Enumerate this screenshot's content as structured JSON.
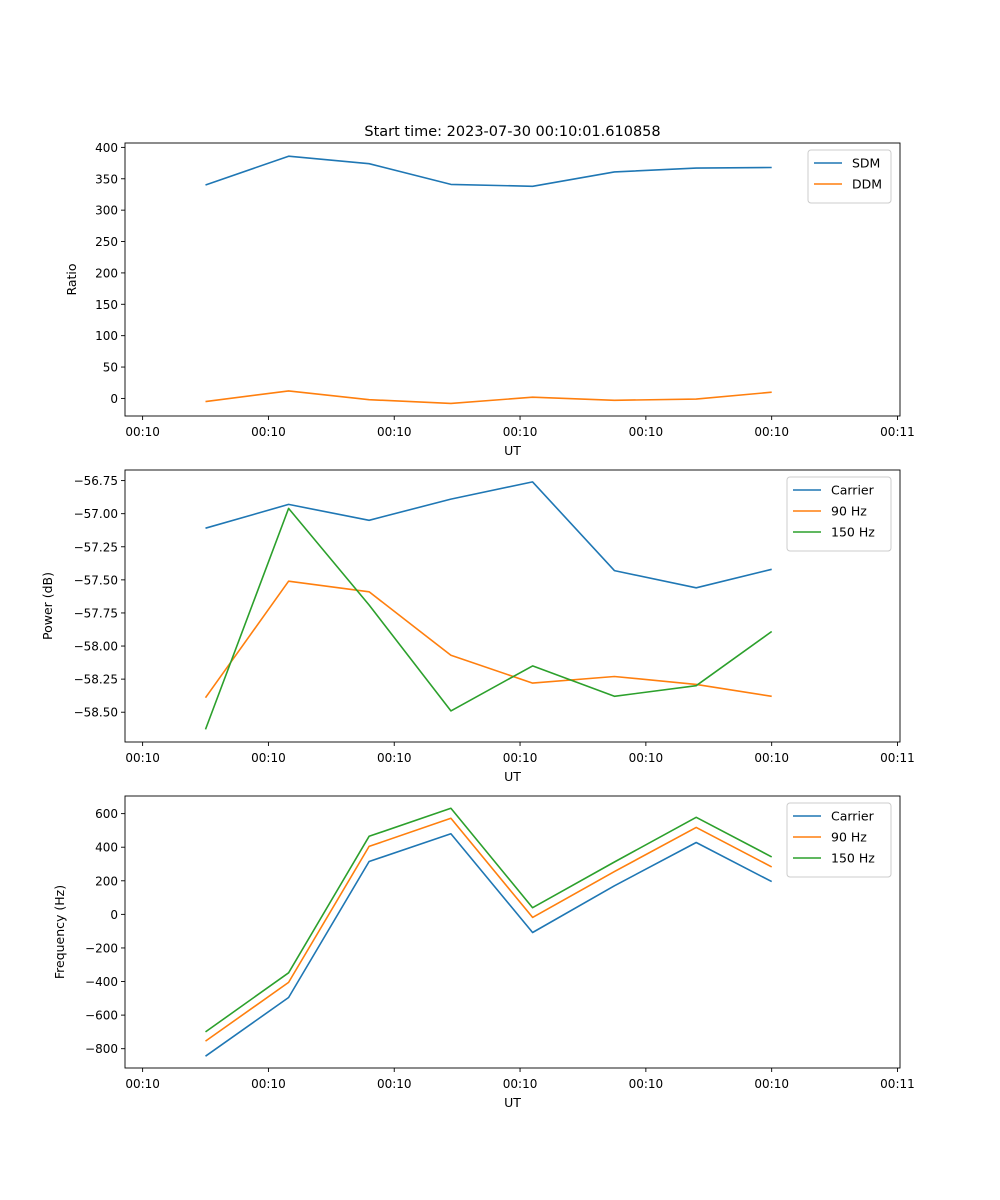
{
  "title": "Start time: 2023-07-30 00:10:01.610858",
  "colors": {
    "blue": "#1f77b4",
    "orange": "#ff7f0e",
    "green": "#2ca02c"
  },
  "chart_data": [
    {
      "type": "line",
      "xlabel": "UT",
      "ylabel": "Ratio",
      "xlim": [
        -0.64,
        5.52
      ],
      "ylim": [
        -28,
        407
      ],
      "yticks": [
        0,
        50,
        100,
        150,
        200,
        250,
        300,
        350,
        400
      ],
      "ytick_labels": [
        "0",
        "50",
        "100",
        "150",
        "200",
        "250",
        "300",
        "350",
        "400"
      ],
      "xticks": [
        -0.5,
        0.5,
        1.5,
        2.5,
        3.5,
        4.5,
        5.5
      ],
      "xtick_labels": [
        "00:10",
        "00:10",
        "00:10",
        "00:10",
        "00:10",
        "00:10",
        "00:11"
      ],
      "x": [
        0,
        0.66,
        1.3,
        1.95,
        2.6,
        3.25,
        3.9,
        4.5
      ],
      "legend_position": "top-right",
      "series": [
        {
          "name": "SDM",
          "color": "#1f77b4",
          "values": [
            340,
            386,
            374,
            341,
            338,
            361,
            367,
            368
          ]
        },
        {
          "name": "DDM",
          "color": "#ff7f0e",
          "values": [
            -5,
            12,
            -2,
            -8,
            2,
            -3,
            -1,
            10
          ]
        }
      ]
    },
    {
      "type": "line",
      "xlabel": "UT",
      "ylabel": "Power (dB)",
      "xlim": [
        -0.64,
        5.52
      ],
      "ylim": [
        -58.725,
        -56.67
      ],
      "yticks": [
        -58.5,
        -58.25,
        -58.0,
        -57.75,
        -57.5,
        -57.25,
        -57.0,
        -56.75
      ],
      "ytick_labels": [
        "−58.50",
        "−58.25",
        "−58.00",
        "−57.75",
        "−57.50",
        "−57.25",
        "−57.00",
        "−56.75"
      ],
      "xticks": [
        -0.5,
        0.5,
        1.5,
        2.5,
        3.5,
        4.5,
        5.5
      ],
      "xtick_labels": [
        "00:10",
        "00:10",
        "00:10",
        "00:10",
        "00:10",
        "00:10",
        "00:11"
      ],
      "x": [
        0,
        0.66,
        1.3,
        1.95,
        2.6,
        3.25,
        3.9,
        4.5
      ],
      "legend_position": "top-right",
      "series": [
        {
          "name": "Carrier",
          "color": "#1f77b4",
          "values": [
            -57.11,
            -56.93,
            -57.05,
            -56.89,
            -56.76,
            -57.43,
            -57.56,
            -57.42
          ]
        },
        {
          "name": "90 Hz",
          "color": "#ff7f0e",
          "values": [
            -58.39,
            -57.51,
            -57.59,
            -58.07,
            -58.28,
            -58.23,
            -58.29,
            -58.38
          ]
        },
        {
          "name": "150 Hz",
          "color": "#2ca02c",
          "values": [
            -58.63,
            -56.96,
            -57.69,
            -58.49,
            -58.15,
            -58.38,
            -58.3,
            -57.89
          ]
        }
      ]
    },
    {
      "type": "line",
      "xlabel": "UT",
      "ylabel": "Frequency (Hz)",
      "xlim": [
        -0.64,
        5.52
      ],
      "ylim": [
        -915,
        705
      ],
      "yticks": [
        -800,
        -600,
        -400,
        -200,
        0,
        200,
        400,
        600
      ],
      "ytick_labels": [
        "−800",
        "−600",
        "−400",
        "−200",
        "0",
        "200",
        "400",
        "600"
      ],
      "xticks": [
        -0.5,
        0.5,
        1.5,
        2.5,
        3.5,
        4.5,
        5.5
      ],
      "xtick_labels": [
        "00:10",
        "00:10",
        "00:10",
        "00:10",
        "00:10",
        "00:10",
        "00:11"
      ],
      "x": [
        0,
        0.66,
        1.3,
        1.95,
        2.6,
        3.25,
        3.9,
        4.5
      ],
      "legend_position": "top-right",
      "series": [
        {
          "name": "Carrier",
          "color": "#1f77b4",
          "values": [
            -845,
            -495,
            315,
            480,
            -108,
            170,
            428,
            195
          ]
        },
        {
          "name": "90 Hz",
          "color": "#ff7f0e",
          "values": [
            -755,
            -405,
            405,
            572,
            -18,
            255,
            518,
            283
          ]
        },
        {
          "name": "150 Hz",
          "color": "#2ca02c",
          "values": [
            -700,
            -348,
            465,
            632,
            40,
            312,
            578,
            342
          ]
        }
      ]
    }
  ]
}
